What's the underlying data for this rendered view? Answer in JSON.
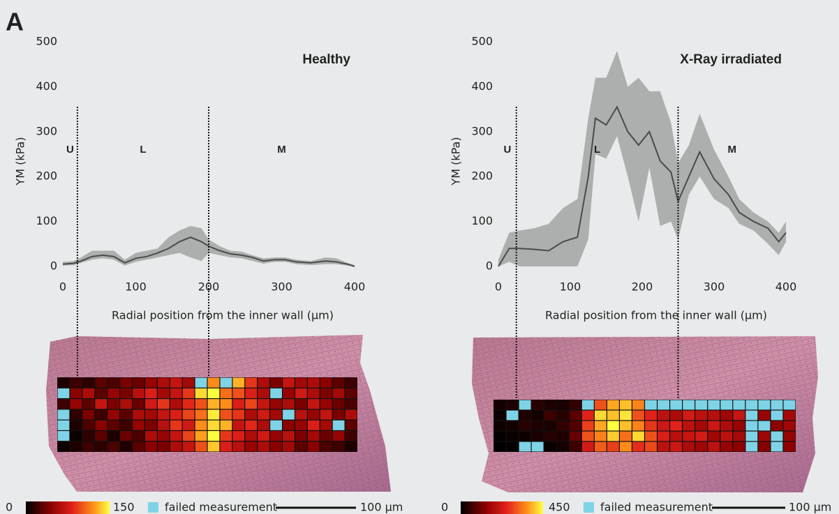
{
  "label": "A",
  "chart_data": [
    {
      "type": "line",
      "title": "Healthy",
      "ylabel": "YM (kPa)",
      "xlabel": "Radial position from the inner wall (μm)",
      "xlim": [
        0,
        400
      ],
      "xticks": [
        0,
        100,
        200,
        300,
        400
      ],
      "ylim": [
        0,
        500
      ],
      "yticks": [
        0,
        100,
        200,
        300,
        400,
        500
      ],
      "line_color": "#4a4a4a",
      "band_color": "#9a9a9a",
      "x": [
        0,
        15,
        25,
        40,
        55,
        70,
        85,
        100,
        115,
        130,
        145,
        160,
        175,
        190,
        200,
        215,
        230,
        245,
        260,
        275,
        290,
        305,
        320,
        340,
        360,
        375,
        390,
        400
      ],
      "values": [
        5,
        7,
        12,
        22,
        25,
        22,
        8,
        18,
        22,
        30,
        40,
        55,
        65,
        55,
        45,
        35,
        28,
        25,
        20,
        12,
        15,
        15,
        10,
        8,
        12,
        10,
        5,
        0
      ],
      "lower": [
        2,
        3,
        8,
        15,
        18,
        15,
        2,
        10,
        15,
        20,
        25,
        30,
        20,
        12,
        30,
        25,
        20,
        18,
        12,
        6,
        10,
        10,
        5,
        3,
        5,
        5,
        2,
        0
      ],
      "upper": [
        10,
        12,
        20,
        35,
        35,
        35,
        15,
        30,
        35,
        40,
        65,
        80,
        90,
        85,
        60,
        45,
        35,
        33,
        25,
        18,
        20,
        20,
        15,
        12,
        20,
        18,
        8,
        3
      ],
      "region_labels": [
        "U",
        "L",
        "M"
      ],
      "boundaries": [
        20,
        200
      ],
      "heatmap": {
        "clim": [
          0,
          150
        ],
        "missing_label": "failed measurement",
        "missing_color": "#7fd3e6",
        "scalebar": "100 μm",
        "values": [
          [
            10,
            20,
            15,
            30,
            25,
            40,
            35,
            50,
            60,
            70,
            55,
            null,
            120,
            null,
            130,
            90,
            60,
            40,
            70,
            55,
            60,
            45,
            30,
            20
          ],
          [
            null,
            45,
            60,
            30,
            50,
            40,
            65,
            80,
            55,
            70,
            90,
            140,
            150,
            110,
            100,
            80,
            60,
            null,
            50,
            75,
            60,
            40,
            55,
            30
          ],
          [
            20,
            50,
            30,
            70,
            40,
            60,
            35,
            75,
            90,
            60,
            85,
            100,
            130,
            120,
            80,
            95,
            70,
            50,
            60,
            40,
            70,
            50,
            35,
            25
          ],
          [
            null,
            15,
            40,
            20,
            50,
            30,
            60,
            55,
            70,
            80,
            95,
            110,
            145,
            100,
            90,
            60,
            75,
            55,
            null,
            65,
            50,
            70,
            40,
            60
          ],
          [
            null,
            10,
            25,
            45,
            30,
            20,
            50,
            40,
            65,
            90,
            75,
            120,
            140,
            130,
            70,
            85,
            60,
            null,
            45,
            50,
            80,
            55,
            null,
            30
          ],
          [
            null,
            5,
            15,
            30,
            10,
            35,
            25,
            60,
            50,
            70,
            95,
            125,
            150,
            90,
            80,
            60,
            75,
            50,
            65,
            40,
            55,
            35,
            50,
            20
          ],
          [
            5,
            10,
            20,
            15,
            25,
            10,
            30,
            45,
            40,
            60,
            70,
            100,
            135,
            80,
            65,
            50,
            60,
            45,
            55,
            30,
            45,
            25,
            20,
            10
          ]
        ]
      }
    },
    {
      "type": "line",
      "title": "X-Ray irradiated",
      "ylabel": "YM (kPa)",
      "xlabel": "Radial position from the inner wall (μm)",
      "xlim": [
        0,
        400
      ],
      "xticks": [
        0,
        100,
        200,
        300,
        400
      ],
      "ylim": [
        0,
        500
      ],
      "yticks": [
        0,
        100,
        200,
        300,
        400,
        500
      ],
      "line_color": "#4a4a4a",
      "band_color": "#9a9a9a",
      "x": [
        0,
        15,
        30,
        50,
        70,
        90,
        110,
        125,
        135,
        150,
        165,
        180,
        195,
        210,
        225,
        240,
        250,
        265,
        280,
        300,
        320,
        335,
        355,
        375,
        390,
        400
      ],
      "values": [
        0,
        40,
        40,
        38,
        35,
        55,
        65,
        200,
        330,
        315,
        355,
        300,
        270,
        300,
        235,
        210,
        145,
        200,
        255,
        195,
        160,
        120,
        100,
        85,
        55,
        75
      ],
      "lower": [
        0,
        10,
        0,
        0,
        0,
        0,
        0,
        60,
        250,
        240,
        290,
        200,
        100,
        220,
        90,
        100,
        60,
        160,
        200,
        150,
        130,
        95,
        80,
        50,
        25,
        55
      ],
      "upper": [
        15,
        75,
        80,
        85,
        95,
        130,
        150,
        330,
        420,
        420,
        480,
        400,
        420,
        390,
        390,
        320,
        230,
        270,
        340,
        260,
        200,
        150,
        120,
        100,
        75,
        100
      ],
      "region_labels": [
        "U",
        "L",
        "M"
      ],
      "boundaries": [
        25,
        250
      ],
      "heatmap": {
        "clim": [
          0,
          450
        ],
        "missing_label": "failed measurement",
        "missing_color": "#7fd3e6",
        "scalebar": "100 μm",
        "values": [
          [
            20,
            30,
            null,
            40,
            30,
            25,
            50,
            null,
            300,
            380,
            400,
            350,
            null,
            null,
            null,
            null,
            null,
            null,
            null,
            null,
            null,
            null,
            null,
            null
          ],
          [
            10,
            null,
            30,
            20,
            60,
            40,
            90,
            250,
            420,
            400,
            430,
            300,
            250,
            200,
            180,
            230,
            200,
            190,
            160,
            210,
            null,
            150,
            null,
            170
          ],
          [
            15,
            20,
            40,
            30,
            25,
            50,
            80,
            280,
            380,
            450,
            400,
            350,
            270,
            220,
            250,
            200,
            170,
            220,
            180,
            150,
            null,
            null,
            140,
            160
          ],
          [
            5,
            10,
            15,
            25,
            35,
            30,
            100,
            300,
            350,
            410,
            330,
            420,
            300,
            240,
            190,
            210,
            230,
            160,
            200,
            170,
            null,
            160,
            null,
            150
          ],
          [
            0,
            5,
            null,
            null,
            10,
            20,
            60,
            230,
            310,
            280,
            360,
            260,
            290,
            200,
            220,
            180,
            160,
            200,
            150,
            140,
            null,
            130,
            null,
            140
          ]
        ]
      }
    }
  ]
}
